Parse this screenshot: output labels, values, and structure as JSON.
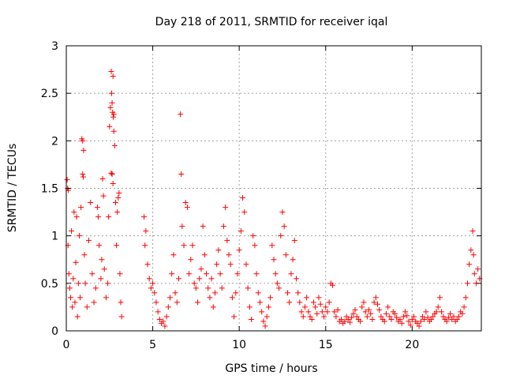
{
  "chart_data": {
    "type": "scatter",
    "title": "Day 218 of 2011, SRMTID for receiver iqal",
    "xlabel": "GPS time / hours",
    "ylabel": "SRMTID / TECUs",
    "xlim": [
      0,
      24
    ],
    "ylim": [
      0,
      3
    ],
    "xticks": [
      0,
      5,
      10,
      15,
      20
    ],
    "yticks": [
      0,
      0.5,
      1,
      1.5,
      2,
      2.5,
      3
    ],
    "xtick_labels": [
      "0",
      "5",
      "10",
      "15",
      "20"
    ],
    "ytick_labels": [
      "0",
      "0.5",
      "1",
      "1.5",
      "2",
      "2.5",
      "3"
    ],
    "grid": true,
    "marker": "plus",
    "color": "#ff0000",
    "series": [
      {
        "name": "SRMTID",
        "points": [
          [
            0.05,
            1.59
          ],
          [
            0.08,
            1.5
          ],
          [
            0.12,
            1.48
          ],
          [
            0.1,
            0.9
          ],
          [
            0.15,
            0.6
          ],
          [
            0.2,
            0.45
          ],
          [
            0.25,
            0.35
          ],
          [
            0.3,
            1.05
          ],
          [
            0.35,
            0.25
          ],
          [
            0.4,
            0.55
          ],
          [
            0.45,
            1.25
          ],
          [
            0.5,
            0.3
          ],
          [
            0.55,
            0.72
          ],
          [
            0.6,
            1.2
          ],
          [
            0.65,
            0.15
          ],
          [
            0.7,
            0.5
          ],
          [
            0.75,
            1.0
          ],
          [
            0.8,
            0.35
          ],
          [
            0.85,
            1.3
          ],
          [
            0.9,
            2.02
          ],
          [
            0.95,
            2.0
          ],
          [
            1.0,
            1.9
          ],
          [
            0.95,
            1.65
          ],
          [
            0.98,
            1.62
          ],
          [
            1.05,
            0.8
          ],
          [
            1.1,
            0.5
          ],
          [
            1.2,
            0.25
          ],
          [
            1.3,
            0.95
          ],
          [
            1.4,
            1.35
          ],
          [
            1.5,
            0.6
          ],
          [
            1.6,
            0.3
          ],
          [
            1.7,
            0.45
          ],
          [
            1.8,
            1.3
          ],
          [
            1.85,
            1.2
          ],
          [
            1.9,
            0.9
          ],
          [
            2.0,
            0.55
          ],
          [
            2.05,
            0.75
          ],
          [
            2.1,
            1.6
          ],
          [
            2.15,
            1.42
          ],
          [
            2.2,
            0.65
          ],
          [
            2.3,
            0.35
          ],
          [
            2.4,
            0.5
          ],
          [
            2.45,
            1.2
          ],
          [
            2.5,
            2.15
          ],
          [
            2.55,
            2.35
          ],
          [
            2.6,
            2.73
          ],
          [
            2.62,
            2.5
          ],
          [
            2.65,
            2.4
          ],
          [
            2.68,
            2.3
          ],
          [
            2.7,
            2.68
          ],
          [
            2.72,
            2.25
          ],
          [
            2.75,
            2.28
          ],
          [
            2.6,
            1.66
          ],
          [
            2.65,
            1.65
          ],
          [
            2.7,
            1.55
          ],
          [
            2.75,
            2.1
          ],
          [
            2.8,
            1.95
          ],
          [
            2.85,
            1.35
          ],
          [
            2.9,
            0.9
          ],
          [
            2.95,
            1.25
          ],
          [
            3.0,
            1.4
          ],
          [
            3.05,
            1.45
          ],
          [
            3.1,
            0.6
          ],
          [
            3.15,
            0.3
          ],
          [
            3.2,
            0.15
          ],
          [
            4.5,
            1.2
          ],
          [
            4.55,
            0.9
          ],
          [
            4.6,
            1.05
          ],
          [
            4.7,
            0.7
          ],
          [
            4.8,
            0.55
          ],
          [
            4.9,
            0.45
          ],
          [
            5.0,
            0.5
          ],
          [
            5.1,
            0.4
          ],
          [
            5.2,
            0.3
          ],
          [
            5.3,
            0.2
          ],
          [
            5.4,
            0.12
          ],
          [
            5.5,
            0.08
          ],
          [
            5.6,
            0.1
          ],
          [
            5.7,
            0.05
          ],
          [
            5.8,
            0.15
          ],
          [
            5.9,
            0.25
          ],
          [
            6.0,
            0.35
          ],
          [
            6.1,
            0.6
          ],
          [
            6.2,
            0.8
          ],
          [
            6.3,
            0.4
          ],
          [
            6.4,
            0.3
          ],
          [
            6.5,
            0.55
          ],
          [
            6.6,
            2.28
          ],
          [
            6.65,
            1.65
          ],
          [
            6.7,
            1.1
          ],
          [
            6.8,
            0.9
          ],
          [
            6.9,
            1.35
          ],
          [
            7.0,
            1.3
          ],
          [
            7.1,
            0.6
          ],
          [
            7.2,
            0.75
          ],
          [
            7.3,
            0.9
          ],
          [
            7.4,
            0.5
          ],
          [
            7.5,
            0.45
          ],
          [
            7.6,
            0.3
          ],
          [
            7.7,
            0.55
          ],
          [
            7.8,
            0.65
          ],
          [
            7.9,
            1.1
          ],
          [
            8.0,
            0.8
          ],
          [
            8.1,
            0.6
          ],
          [
            8.2,
            0.45
          ],
          [
            8.3,
            0.35
          ],
          [
            8.4,
            0.55
          ],
          [
            8.5,
            0.25
          ],
          [
            8.6,
            0.4
          ],
          [
            8.7,
            0.7
          ],
          [
            8.8,
            0.85
          ],
          [
            8.9,
            0.6
          ],
          [
            9.0,
            0.45
          ],
          [
            9.1,
            1.1
          ],
          [
            9.2,
            1.3
          ],
          [
            9.3,
            0.95
          ],
          [
            9.4,
            0.8
          ],
          [
            9.5,
            0.7
          ],
          [
            9.6,
            0.35
          ],
          [
            9.7,
            0.15
          ],
          [
            9.8,
            0.4
          ],
          [
            9.9,
            0.6
          ],
          [
            10.0,
            0.85
          ],
          [
            10.1,
            1.05
          ],
          [
            10.2,
            1.4
          ],
          [
            10.3,
            1.25
          ],
          [
            10.4,
            0.7
          ],
          [
            10.5,
            0.45
          ],
          [
            10.6,
            0.25
          ],
          [
            10.7,
            0.12
          ],
          [
            10.8,
            1.0
          ],
          [
            10.9,
            0.9
          ],
          [
            11.0,
            0.6
          ],
          [
            11.1,
            0.4
          ],
          [
            11.2,
            0.3
          ],
          [
            11.3,
            0.2
          ],
          [
            11.4,
            0.1
          ],
          [
            11.5,
            0.05
          ],
          [
            11.6,
            0.15
          ],
          [
            11.7,
            0.25
          ],
          [
            11.8,
            0.35
          ],
          [
            11.9,
            0.9
          ],
          [
            12.0,
            0.75
          ],
          [
            12.1,
            0.6
          ],
          [
            12.2,
            0.5
          ],
          [
            12.3,
            0.45
          ],
          [
            12.4,
            1.0
          ],
          [
            12.5,
            1.25
          ],
          [
            12.6,
            1.1
          ],
          [
            12.7,
            0.8
          ],
          [
            12.8,
            0.4
          ],
          [
            12.9,
            0.3
          ],
          [
            13.0,
            0.6
          ],
          [
            13.1,
            0.75
          ],
          [
            13.2,
            0.95
          ],
          [
            13.3,
            0.55
          ],
          [
            13.4,
            0.4
          ],
          [
            13.5,
            0.3
          ],
          [
            13.6,
            0.2
          ],
          [
            13.7,
            0.15
          ],
          [
            13.8,
            0.25
          ],
          [
            13.9,
            0.35
          ],
          [
            14.0,
            0.2
          ],
          [
            14.1,
            0.15
          ],
          [
            14.2,
            0.12
          ],
          [
            14.3,
            0.3
          ],
          [
            14.4,
            0.25
          ],
          [
            14.5,
            0.18
          ],
          [
            14.6,
            0.35
          ],
          [
            14.7,
            0.28
          ],
          [
            14.8,
            0.2
          ],
          [
            14.9,
            0.15
          ],
          [
            15.0,
            0.25
          ],
          [
            15.1,
            0.2
          ],
          [
            15.2,
            0.3
          ],
          [
            15.3,
            0.5
          ],
          [
            15.4,
            0.48
          ],
          [
            15.5,
            0.2
          ],
          [
            15.6,
            0.15
          ],
          [
            15.7,
            0.22
          ],
          [
            15.8,
            0.1
          ],
          [
            15.9,
            0.12
          ],
          [
            16.0,
            0.08
          ],
          [
            16.1,
            0.1
          ],
          [
            16.2,
            0.15
          ],
          [
            16.3,
            0.12
          ],
          [
            16.4,
            0.09
          ],
          [
            16.5,
            0.14
          ],
          [
            16.6,
            0.18
          ],
          [
            16.7,
            0.22
          ],
          [
            16.8,
            0.15
          ],
          [
            16.9,
            0.12
          ],
          [
            17.0,
            0.1
          ],
          [
            17.1,
            0.25
          ],
          [
            17.2,
            0.3
          ],
          [
            17.3,
            0.2
          ],
          [
            17.4,
            0.15
          ],
          [
            17.5,
            0.22
          ],
          [
            17.6,
            0.18
          ],
          [
            17.7,
            0.12
          ],
          [
            17.8,
            0.3
          ],
          [
            17.9,
            0.35
          ],
          [
            18.0,
            0.28
          ],
          [
            18.1,
            0.22
          ],
          [
            18.2,
            0.15
          ],
          [
            18.3,
            0.12
          ],
          [
            18.4,
            0.1
          ],
          [
            18.5,
            0.18
          ],
          [
            18.6,
            0.25
          ],
          [
            18.7,
            0.15
          ],
          [
            18.8,
            0.12
          ],
          [
            18.9,
            0.2
          ],
          [
            19.0,
            0.18
          ],
          [
            19.1,
            0.14
          ],
          [
            19.2,
            0.1
          ],
          [
            19.3,
            0.12
          ],
          [
            19.4,
            0.08
          ],
          [
            19.5,
            0.15
          ],
          [
            19.6,
            0.2
          ],
          [
            19.7,
            0.16
          ],
          [
            19.8,
            0.1
          ],
          [
            19.9,
            0.06
          ],
          [
            20.0,
            0.12
          ],
          [
            20.1,
            0.15
          ],
          [
            20.2,
            0.1
          ],
          [
            20.3,
            0.08
          ],
          [
            20.4,
            0.05
          ],
          [
            20.5,
            0.1
          ],
          [
            20.6,
            0.15
          ],
          [
            20.7,
            0.12
          ],
          [
            20.8,
            0.2
          ],
          [
            20.9,
            0.14
          ],
          [
            21.0,
            0.1
          ],
          [
            21.1,
            0.12
          ],
          [
            21.2,
            0.15
          ],
          [
            21.3,
            0.18
          ],
          [
            21.4,
            0.2
          ],
          [
            21.5,
            0.25
          ],
          [
            21.6,
            0.35
          ],
          [
            21.7,
            0.2
          ],
          [
            21.8,
            0.15
          ],
          [
            21.9,
            0.12
          ],
          [
            22.0,
            0.1
          ],
          [
            22.1,
            0.14
          ],
          [
            22.2,
            0.18
          ],
          [
            22.3,
            0.12
          ],
          [
            22.4,
            0.15
          ],
          [
            22.5,
            0.1
          ],
          [
            22.6,
            0.12
          ],
          [
            22.7,
            0.15
          ],
          [
            22.8,
            0.2
          ],
          [
            22.9,
            0.18
          ],
          [
            23.0,
            0.25
          ],
          [
            23.1,
            0.35
          ],
          [
            23.2,
            0.5
          ],
          [
            23.3,
            0.7
          ],
          [
            23.4,
            0.85
          ],
          [
            23.5,
            1.05
          ],
          [
            23.55,
            0.8
          ],
          [
            23.6,
            0.6
          ],
          [
            23.7,
            0.5
          ],
          [
            23.8,
            0.65
          ],
          [
            23.9,
            0.55
          ]
        ]
      }
    ]
  }
}
